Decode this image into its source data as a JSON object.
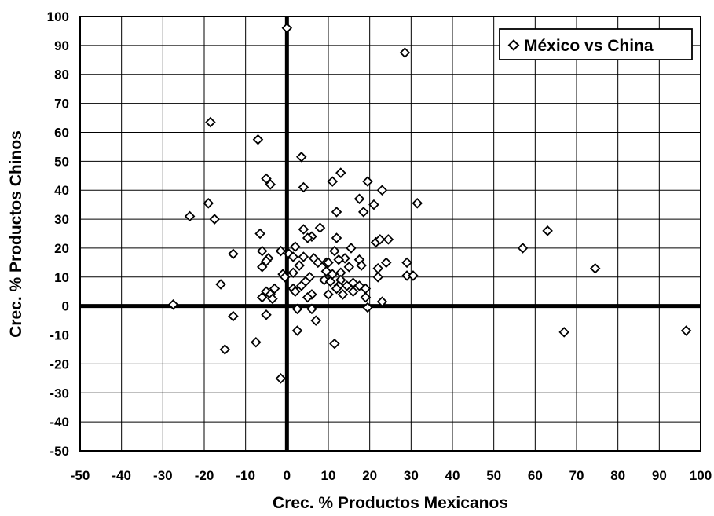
{
  "chart_data": {
    "type": "scatter",
    "title": "",
    "xlabel": "Crec. % Productos Mexicanos",
    "ylabel": "Crec. % Productos Chinos",
    "xlim": [
      -50,
      100
    ],
    "ylim": [
      -50,
      100
    ],
    "x_ticks": [
      -50,
      -40,
      -30,
      -20,
      -10,
      0,
      10,
      20,
      30,
      40,
      50,
      60,
      70,
      80,
      90,
      100
    ],
    "y_ticks": [
      -50,
      -40,
      -30,
      -20,
      -10,
      0,
      10,
      20,
      30,
      40,
      50,
      60,
      70,
      80,
      90,
      100
    ],
    "grid": true,
    "legend_position": "top-right",
    "marker": "diamond-open",
    "series": [
      {
        "name": "México vs China",
        "points": [
          [
            0,
            96
          ],
          [
            28.5,
            87.5
          ],
          [
            -18.5,
            63.5
          ],
          [
            -7,
            57.5
          ],
          [
            3.5,
            51.5
          ],
          [
            13,
            46
          ],
          [
            -5,
            44
          ],
          [
            -4,
            42
          ],
          [
            11,
            43
          ],
          [
            19.5,
            43
          ],
          [
            4,
            41
          ],
          [
            23,
            40
          ],
          [
            17.5,
            37
          ],
          [
            -19,
            35.5
          ],
          [
            21,
            35
          ],
          [
            31.5,
            35.5
          ],
          [
            -23.5,
            31
          ],
          [
            12,
            32.5
          ],
          [
            18.5,
            32.5
          ],
          [
            -17.5,
            30
          ],
          [
            4,
            26.5
          ],
          [
            8,
            27
          ],
          [
            63,
            26
          ],
          [
            -6.5,
            25
          ],
          [
            12,
            23.5
          ],
          [
            6,
            24
          ],
          [
            5,
            23.5
          ],
          [
            21.5,
            22
          ],
          [
            22.5,
            23
          ],
          [
            24.5,
            23
          ],
          [
            57,
            20
          ],
          [
            2,
            20.5
          ],
          [
            15.5,
            20
          ],
          [
            -6,
            19
          ],
          [
            -1.5,
            19
          ],
          [
            0.5,
            18
          ],
          [
            11.5,
            19
          ],
          [
            -13,
            18
          ],
          [
            1.5,
            17
          ],
          [
            4,
            17
          ],
          [
            -4.5,
            16.5
          ],
          [
            6.5,
            16.5
          ],
          [
            14,
            16.5
          ],
          [
            7.5,
            15
          ],
          [
            9.5,
            15
          ],
          [
            12.5,
            16
          ],
          [
            17.5,
            16
          ],
          [
            -5,
            15.5
          ],
          [
            10,
            15
          ],
          [
            18,
            14
          ],
          [
            -6,
            13.5
          ],
          [
            3,
            14
          ],
          [
            15,
            13.5
          ],
          [
            24,
            15
          ],
          [
            29,
            15
          ],
          [
            74.5,
            13
          ],
          [
            9.5,
            12
          ],
          [
            22,
            13
          ],
          [
            11,
            11
          ],
          [
            13,
            11.5
          ],
          [
            -1,
            11
          ],
          [
            1.5,
            11.5
          ],
          [
            29,
            10.5
          ],
          [
            30.5,
            10.5
          ],
          [
            -0.5,
            10
          ],
          [
            5.5,
            10
          ],
          [
            9,
            9
          ],
          [
            13,
            9
          ],
          [
            22,
            10
          ],
          [
            4.5,
            8.5
          ],
          [
            10.5,
            8.5
          ],
          [
            16,
            8
          ],
          [
            -16,
            7.5
          ],
          [
            3.5,
            7
          ],
          [
            12.5,
            7
          ],
          [
            14.5,
            7
          ],
          [
            17.5,
            7
          ],
          [
            -3,
            6
          ],
          [
            1.5,
            6
          ],
          [
            12,
            6
          ],
          [
            19,
            6
          ],
          [
            -5,
            5
          ],
          [
            2,
            5
          ],
          [
            16,
            5
          ],
          [
            -4,
            4
          ],
          [
            6,
            4
          ],
          [
            10,
            4
          ],
          [
            13.5,
            4
          ],
          [
            19,
            3
          ],
          [
            -6,
            3
          ],
          [
            -3.5,
            2.5
          ],
          [
            5,
            3
          ],
          [
            23,
            1.5
          ],
          [
            -27.5,
            0.5
          ],
          [
            2.5,
            -1
          ],
          [
            6,
            -1
          ],
          [
            19.5,
            -0.5
          ],
          [
            -5,
            -3
          ],
          [
            -13,
            -3.5
          ],
          [
            7,
            -5
          ],
          [
            2.5,
            -8.5
          ],
          [
            67,
            -9
          ],
          [
            96.5,
            -8.5
          ],
          [
            -7.5,
            -12.5
          ],
          [
            11.5,
            -13
          ],
          [
            -15,
            -15
          ],
          [
            -1.5,
            -25
          ]
        ]
      }
    ]
  }
}
